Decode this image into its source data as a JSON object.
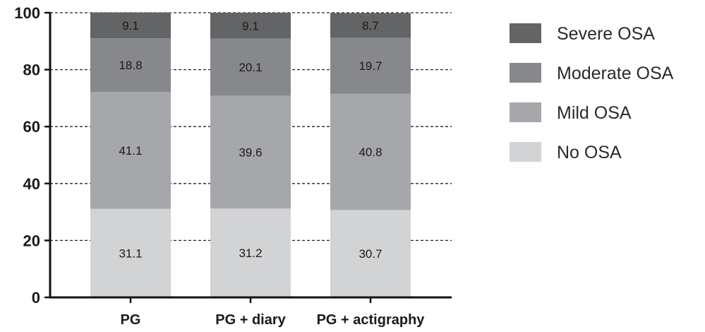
{
  "chart_data": {
    "type": "bar",
    "stacked": true,
    "categories": [
      "PG",
      "PG + diary",
      "PG + actigraphy"
    ],
    "series": [
      {
        "name": "No OSA",
        "values": [
          31.1,
          31.2,
          30.7
        ],
        "color": "#d2d3d5"
      },
      {
        "name": "Mild OSA",
        "values": [
          41.1,
          39.6,
          40.8
        ],
        "color": "#a6a7aa"
      },
      {
        "name": "Moderate OSA",
        "values": [
          18.8,
          20.1,
          19.7
        ],
        "color": "#87888b"
      },
      {
        "name": "Severe OSA",
        "values": [
          9.1,
          9.1,
          8.7
        ],
        "color": "#636466"
      }
    ],
    "ylim": [
      0,
      100
    ],
    "yticks": [
      0,
      20,
      40,
      60,
      80,
      100
    ],
    "grid": "dashed horizontal",
    "legend": "right",
    "xlabel": "",
    "ylabel": "",
    "title": ""
  }
}
